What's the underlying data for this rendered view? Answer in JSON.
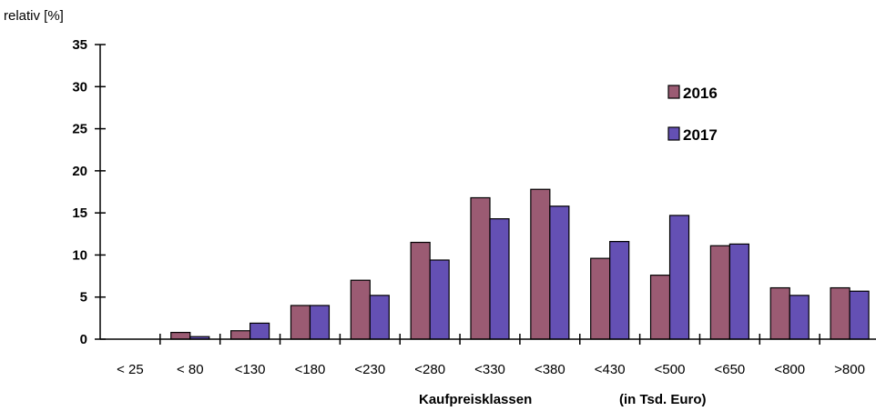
{
  "chart_data": {
    "type": "bar",
    "ylabel": "relativ [%]",
    "xlabel_parts": [
      "Kaufpreisklassen",
      "(in Tsd. Euro)"
    ],
    "categories": [
      "< 25",
      "< 80",
      "<130",
      "<180",
      "<230",
      "<280",
      "<330",
      "<380",
      "<430",
      "<500",
      "<650",
      "<800",
      ">800"
    ],
    "y_ticks": [
      "0",
      "5",
      "10",
      "15",
      "20",
      "25",
      "30",
      "35"
    ],
    "ylim": [
      0,
      35
    ],
    "grid": false,
    "legend_position": "top-right",
    "series": [
      {
        "name": "2016",
        "color": "#9b5b73",
        "values": [
          0,
          0.8,
          1.0,
          4.0,
          7.0,
          11.5,
          16.8,
          17.8,
          9.6,
          7.6,
          11.1,
          6.1,
          6.1
        ]
      },
      {
        "name": "2017",
        "color": "#6450b4",
        "values": [
          0,
          0.3,
          1.9,
          4.0,
          5.2,
          9.4,
          14.3,
          15.8,
          11.6,
          14.7,
          11.3,
          5.2,
          5.7
        ]
      }
    ]
  }
}
